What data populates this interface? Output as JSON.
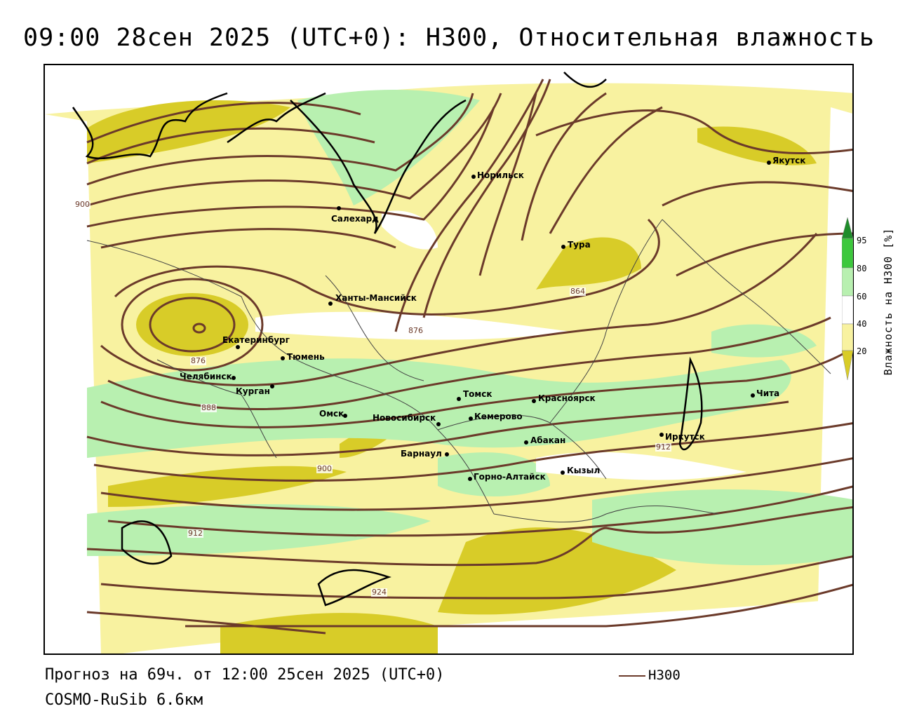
{
  "title": "09:00 28сен 2025 (UTC+0): H300, Относительная влажность",
  "footer": {
    "forecast": "Прогноз на 69ч. от 12:00 25сен 2025 (UTC+0)",
    "model": "COSMO-RuSib 6.6км"
  },
  "legend": {
    "label": "H300",
    "color": "#6b3a2a"
  },
  "colorbar": {
    "title": "Влажность на H300 [%]",
    "ticks": [
      "95",
      "80",
      "60",
      "40",
      "20"
    ],
    "colors": [
      "#1e8c2a",
      "#3cc83c",
      "#b8f0b0",
      "#ffffff",
      "#f8f2a0",
      "#d8cc28"
    ]
  },
  "cities": [
    {
      "name": "Якутск"
    },
    {
      "name": "Норильск"
    },
    {
      "name": "Салехард"
    },
    {
      "name": "Тура"
    },
    {
      "name": "Ханты-Мансийск"
    },
    {
      "name": "Екатеринбург"
    },
    {
      "name": "Тюмень"
    },
    {
      "name": "Челябинск"
    },
    {
      "name": "Курган"
    },
    {
      "name": "Омск"
    },
    {
      "name": "Новосибирск"
    },
    {
      "name": "Томск"
    },
    {
      "name": "Кемерово"
    },
    {
      "name": "Красноярск"
    },
    {
      "name": "Барнаул"
    },
    {
      "name": "Абакан"
    },
    {
      "name": "Горно-Алтайск"
    },
    {
      "name": "Кызыл"
    },
    {
      "name": "Иркутск"
    },
    {
      "name": "Чита"
    }
  ],
  "isolines": [
    "900",
    "864",
    "876",
    "876",
    "888",
    "900",
    "912",
    "912",
    "924"
  ]
}
